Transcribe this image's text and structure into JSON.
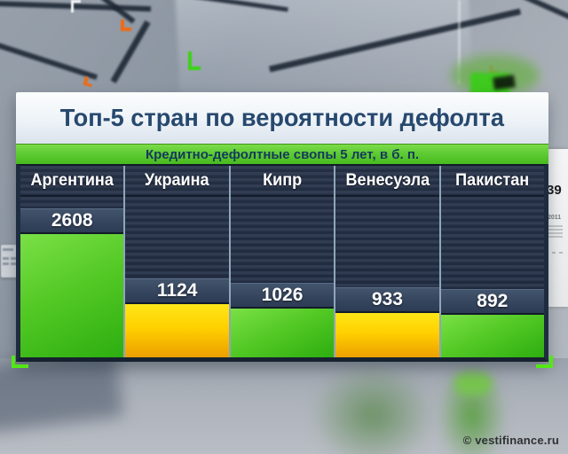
{
  "panel": {
    "title": "Топ-5 стран по вероятности дефолта",
    "subtitle": "Кредитно-дефолтные свопы 5 лет, в б. п."
  },
  "watermark": "© vestifinance.ru",
  "background_notes": {
    "number": "39",
    "year": "2011"
  },
  "chart_data": {
    "type": "bar",
    "title": "Топ-5 стран по вероятности дефолта",
    "subtitle": "Кредитно-дефолтные свопы 5 лет, в б. п.",
    "categories": [
      "Аргентина",
      "Украина",
      "Кипр",
      "Венесуэла",
      "Пакистан"
    ],
    "values": [
      2608,
      1124,
      1026,
      933,
      892
    ],
    "bar_colors": [
      "green",
      "yellow",
      "green",
      "yellow",
      "green"
    ],
    "value_labels": "above bars",
    "unit": "б. п.",
    "ylim": [
      0,
      2608
    ],
    "legend_position": "none",
    "grid": "off"
  },
  "colors": {
    "green_bar": "#4ec723",
    "yellow_bar": "#ffd000",
    "subtitle_band_green": "#5ecc35",
    "title_text": "#27496f",
    "table_background": "#232f45",
    "value_band": "#35455e",
    "corner_bracket_green": "#53e716"
  }
}
